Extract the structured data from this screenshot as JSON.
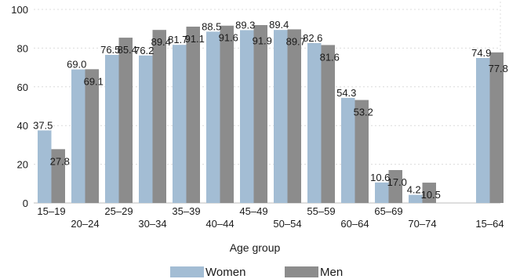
{
  "chart_data": {
    "type": "bar",
    "categories": [
      "15–19",
      "20–24",
      "25–29",
      "30–34",
      "35–39",
      "40–44",
      "45–49",
      "50–54",
      "55–59",
      "60–64",
      "65–69",
      "70–74",
      "15–64"
    ],
    "series": [
      {
        "name": "Women",
        "color": "#a3bdd4",
        "values": [
          37.5,
          69.0,
          76.5,
          76.2,
          81.7,
          88.5,
          89.3,
          89.4,
          82.6,
          54.3,
          10.6,
          4.2,
          74.9
        ]
      },
      {
        "name": "Men",
        "color": "#8c8c8c",
        "values": [
          27.8,
          69.1,
          85.4,
          89.4,
          91.1,
          91.6,
          91.9,
          89.7,
          81.6,
          53.2,
          17.0,
          10.5,
          77.8
        ]
      }
    ],
    "value_labels": {
      "Women": [
        "37.5",
        "69.0",
        "76.5",
        "76.2",
        "81.7",
        "88.5",
        "89.3",
        "89.4",
        "82.6",
        "54.3",
        "10.6",
        "4.2",
        "74.9"
      ],
      "Men": [
        "27.8",
        "69.1",
        "85.4",
        "89.4",
        "91.1",
        "91.6",
        "91.9",
        "89.7",
        "81.6",
        "53.2",
        "17.0",
        "10.5",
        "77.8"
      ]
    },
    "category_slots": [
      0,
      1,
      2,
      3,
      4,
      5,
      6,
      7,
      8,
      9,
      10,
      11,
      13
    ],
    "xlabel": "Age group",
    "ylabel": "",
    "ylim": [
      0,
      100
    ],
    "yticks": [
      "0",
      "20",
      "40",
      "60",
      "80",
      "100"
    ],
    "grid": true,
    "legend": "bottom"
  }
}
